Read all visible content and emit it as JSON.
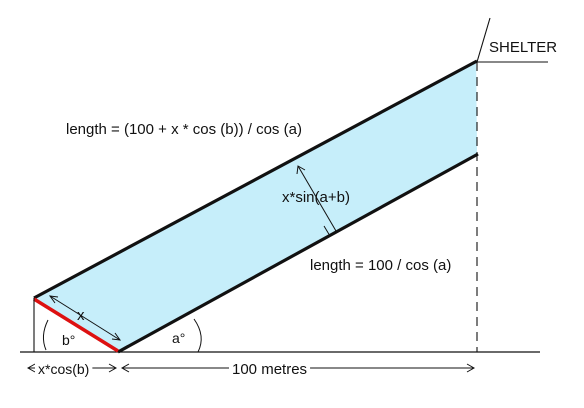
{
  "diagram": {
    "shelter_label": "SHELTER",
    "length_upper_label": "length = (100 + x * cos (b)) / cos (a)",
    "length_lower_label": "length = 100 / cos (a)",
    "perpendicular_label": "x*sin(a+b)",
    "x_label": "x",
    "angle_a_label": "a°",
    "angle_b_label": "b°",
    "bottom_left_label": "x*cos(b)",
    "bottom_distance_label": "100 metres",
    "colors": {
      "band_fill": "#c6eefa",
      "red_segment": "#dd1111",
      "line": "#111111"
    }
  }
}
